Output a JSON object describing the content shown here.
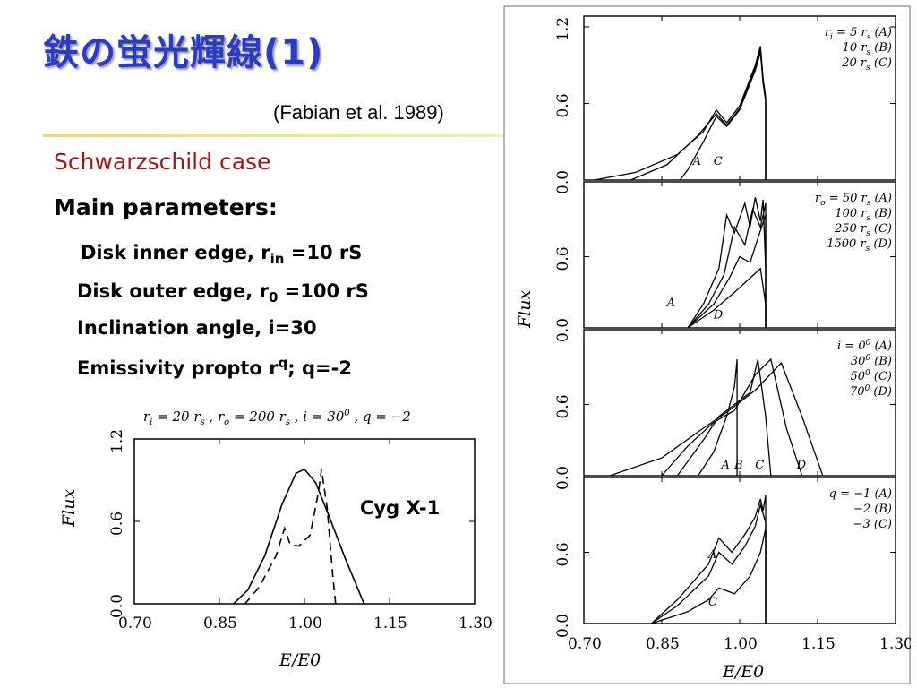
{
  "slide": {
    "title": "鉄の蛍光輝線(1)",
    "citation": "(Fabian et al. 1989)",
    "subtitle": "Schwarzschild case",
    "params_heading": "Main parameters:",
    "inner_edge": {
      "prefix": "Disk inner edge, r",
      "sub": "in",
      "suffix": " =10 rS"
    },
    "outer_edge": {
      "prefix": "Disk outer edge, r",
      "sub": "0",
      "suffix": " =100 rS"
    },
    "inclination": "Inclination angle, i=30",
    "emissivity": {
      "prefix": "Emissivity propto r",
      "sup": "q",
      "suffix": "; q=-2"
    },
    "cyg_label": "Cyg X-1"
  },
  "colors": {
    "title": "#2a3bc6",
    "subtitle": "#a01818",
    "rule": "#e8dc6a"
  },
  "chart_data": [
    {
      "type": "line",
      "title": "r_i = 20 r_s , r_o = 200 r_s , i = 30^0 , q = -2",
      "title_parts": {
        "ri": "r",
        "ri_sub": "i",
        "ri_val": " = 20 r",
        "rs": "s",
        "ro": " ,  r",
        "ro_sub": "o",
        "ro_val": " = 200 r",
        "rs2": "s",
        "incl": " ,  i = 30",
        "incl_sup": "0",
        "q": " ,  q = −2"
      },
      "xlabel": "E/E0",
      "ylabel": "Flux",
      "xlim": [
        0.7,
        1.3
      ],
      "ylim": [
        0.0,
        1.2
      ],
      "xticks": [
        "0.70",
        "0.85",
        "1.00",
        "1.15",
        "1.30"
      ],
      "yticks": [
        "0.0",
        "0.6",
        "1.2"
      ],
      "series": [
        {
          "style": "solid",
          "x": [
            0.875,
            0.9,
            0.93,
            0.96,
            0.985,
            1.0,
            1.02,
            1.045,
            1.07,
            1.095,
            1.105
          ],
          "y": [
            0.0,
            0.1,
            0.35,
            0.72,
            0.95,
            0.98,
            0.88,
            0.62,
            0.35,
            0.1,
            0.0
          ]
        },
        {
          "style": "dashed",
          "x": [
            0.895,
            0.92,
            0.95,
            0.965,
            0.975,
            0.99,
            1.01,
            1.025,
            1.03,
            1.04,
            1.05,
            1.055
          ],
          "y": [
            0.0,
            0.12,
            0.35,
            0.55,
            0.43,
            0.42,
            0.5,
            0.82,
            0.98,
            0.7,
            0.2,
            0.0
          ]
        }
      ]
    },
    {
      "type": "line",
      "panels": [
        {
          "legend": [
            {
              "text": "r",
              "sub": "i",
              "rest": " = 5  r",
              "sub2": "s",
              "tag": "  (A)"
            },
            {
              "text": "10  r",
              "sub2": "s",
              "tag": "  (B)"
            },
            {
              "text": "20  r",
              "sub2": "s",
              "tag": "  (C)"
            }
          ],
          "curve_labels": [
            "A",
            "C"
          ],
          "yticks": [
            "0.0",
            "0.6",
            "1.2"
          ],
          "series": [
            {
              "name": "A",
              "x": [
                0.72,
                0.8,
                0.88,
                0.93,
                0.955,
                0.975,
                1.0,
                1.03,
                1.04,
                1.045,
                1.05,
                1.05
              ],
              "y": [
                0.0,
                0.06,
                0.2,
                0.38,
                0.55,
                0.45,
                0.58,
                0.9,
                1.05,
                0.8,
                0.65,
                0.0
              ]
            },
            {
              "name": "B",
              "x": [
                0.79,
                0.86,
                0.92,
                0.955,
                0.975,
                1.0,
                1.03,
                1.04,
                1.045,
                1.05,
                1.05
              ],
              "y": [
                0.0,
                0.12,
                0.35,
                0.52,
                0.43,
                0.56,
                0.88,
                1.02,
                0.78,
                0.63,
                0.0
              ]
            },
            {
              "name": "C",
              "x": [
                0.885,
                0.9,
                0.93,
                0.955,
                0.975,
                1.0,
                1.03,
                1.04,
                1.045,
                1.05,
                1.05
              ],
              "y": [
                0.0,
                0.08,
                0.3,
                0.5,
                0.42,
                0.55,
                0.86,
                1.0,
                0.76,
                0.62,
                0.0
              ]
            }
          ]
        },
        {
          "legend": [
            {
              "text": "r",
              "sub": "o",
              "rest": " = 50  r",
              "sub2": "s",
              "tag": "  (A)"
            },
            {
              "text": "100  r",
              "sub2": "s",
              "tag": "  (B)"
            },
            {
              "text": "250  r",
              "sub2": "s",
              "tag": "  (C)"
            },
            {
              "text": "1500  r",
              "sub2": "s",
              "tag": "  (D)"
            }
          ],
          "curve_labels": [
            "A",
            "D"
          ],
          "yticks": [
            "0.0",
            "0.6"
          ],
          "series": [
            {
              "name": "A",
              "x": [
                0.9,
                0.93,
                0.96,
                0.975,
                0.99,
                1.01,
                1.02,
                1.03,
                1.04,
                1.045,
                1.05,
                1.05
              ],
              "y": [
                0.0,
                0.2,
                0.5,
                0.95,
                0.8,
                1.05,
                0.85,
                1.1,
                0.9,
                1.08,
                0.5,
                0.0
              ]
            },
            {
              "name": "B",
              "x": [
                0.9,
                0.94,
                0.97,
                0.99,
                1.01,
                1.025,
                1.04,
                1.05,
                1.05
              ],
              "y": [
                0.0,
                0.2,
                0.45,
                0.85,
                0.7,
                1.0,
                0.85,
                1.05,
                0.0
              ]
            },
            {
              "name": "C",
              "x": [
                0.9,
                0.95,
                0.98,
                1.0,
                1.02,
                1.04,
                1.05,
                1.05
              ],
              "y": [
                0.0,
                0.2,
                0.42,
                0.6,
                0.55,
                0.82,
                0.95,
                0.0
              ]
            },
            {
              "name": "D",
              "x": [
                0.9,
                0.95,
                0.99,
                1.02,
                1.04,
                1.05,
                1.05
              ],
              "y": [
                0.0,
                0.15,
                0.3,
                0.42,
                0.5,
                0.2,
                0.0
              ]
            }
          ]
        },
        {
          "legend": [
            {
              "text": "i  =  0",
              "sup": "0",
              "tag": "  (A)"
            },
            {
              "text": "30",
              "sup": "0",
              "tag": "  (B)"
            },
            {
              "text": "50",
              "sup": "0",
              "tag": "  (C)"
            },
            {
              "text": "70",
              "sup": "0",
              "tag": "  (D)"
            }
          ],
          "curve_labels": [
            "A",
            "B",
            "C",
            "D"
          ],
          "yticks": [
            "0.0",
            "0.6"
          ],
          "series": [
            {
              "name": "A",
              "x": [
                0.92,
                0.95,
                0.975,
                0.99,
                0.995,
                0.995
              ],
              "y": [
                0.0,
                0.2,
                0.5,
                0.75,
                0.98,
                0.0
              ]
            },
            {
              "name": "B",
              "x": [
                0.88,
                0.93,
                0.96,
                0.99,
                1.02,
                1.035,
                1.05,
                1.06
              ],
              "y": [
                0.0,
                0.3,
                0.5,
                0.6,
                0.7,
                0.98,
                0.5,
                0.0
              ]
            },
            {
              "name": "C",
              "x": [
                0.85,
                0.9,
                0.95,
                0.99,
                1.03,
                1.06,
                1.09,
                1.12
              ],
              "y": [
                0.0,
                0.25,
                0.45,
                0.55,
                0.85,
                0.98,
                0.4,
                0.0
              ]
            },
            {
              "name": "D",
              "x": [
                0.75,
                0.85,
                0.93,
                0.98,
                1.03,
                1.08,
                1.12,
                1.16
              ],
              "y": [
                0.0,
                0.15,
                0.4,
                0.55,
                0.72,
                0.95,
                0.5,
                0.0
              ]
            }
          ]
        },
        {
          "legend": [
            {
              "text": "q  =  −1",
              "tag": "  (A)"
            },
            {
              "text": "−2",
              "tag": "  (B)"
            },
            {
              "text": "−3",
              "tag": "  (C)"
            }
          ],
          "curve_labels": [
            "A",
            "C"
          ],
          "yticks": [
            "0.0",
            "0.6"
          ],
          "series": [
            {
              "name": "A",
              "x": [
                0.83,
                0.88,
                0.94,
                0.96,
                0.985,
                1.01,
                1.03,
                1.04,
                1.045,
                1.05,
                1.05
              ],
              "y": [
                0.0,
                0.2,
                0.5,
                0.72,
                0.6,
                0.75,
                0.9,
                1.05,
                0.95,
                1.08,
                0.0
              ]
            },
            {
              "name": "B",
              "x": [
                0.83,
                0.88,
                0.94,
                0.96,
                0.985,
                1.01,
                1.03,
                1.04,
                1.05,
                1.05
              ],
              "y": [
                0.0,
                0.15,
                0.4,
                0.6,
                0.5,
                0.65,
                0.82,
                1.0,
                0.85,
                0.0
              ]
            },
            {
              "name": "C",
              "x": [
                0.83,
                0.9,
                0.94,
                0.96,
                0.99,
                1.02,
                1.04,
                1.05,
                1.05
              ],
              "y": [
                0.0,
                0.1,
                0.2,
                0.3,
                0.25,
                0.4,
                0.6,
                0.8,
                0.0
              ]
            }
          ]
        }
      ],
      "xlabel": "E/E0",
      "ylabel": "Flux",
      "xlim": [
        0.7,
        1.3
      ],
      "ylim": [
        0.0,
        1.2
      ],
      "xticks": [
        "0.70",
        "0.85",
        "1.00",
        "1.15",
        "1.30"
      ]
    }
  ]
}
